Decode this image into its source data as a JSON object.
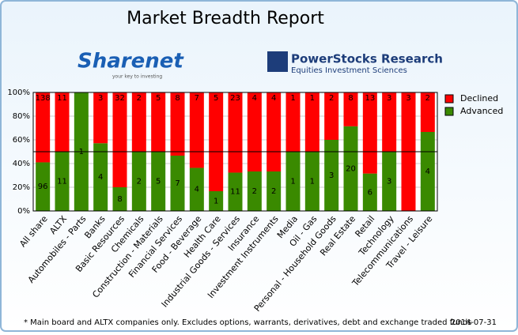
{
  "chart_data": {
    "type": "bar",
    "stack": "percent",
    "title": "Market Breadth Report",
    "categories": [
      "All share",
      "ALTX",
      "Automobiles - Parts",
      "Banks",
      "Basic Resources",
      "Chemicals",
      "Construction - Materials",
      "Financial Services",
      "Food - Beverage",
      "Health Care",
      "Industrial Goods - Services",
      "Insurance",
      "Investment Instruments",
      "Media",
      "Oil - Gas",
      "Personal - Household Goods",
      "Real Estate",
      "Retail",
      "Technology",
      "Telecommunications",
      "Travel - Leisure"
    ],
    "series": [
      {
        "name": "Advanced",
        "color": "#3a8a00",
        "values": [
          96,
          11,
          1,
          4,
          8,
          2,
          5,
          7,
          4,
          1,
          11,
          2,
          2,
          1,
          1,
          3,
          20,
          6,
          3,
          0,
          4
        ]
      },
      {
        "name": "Declined",
        "color": "#ff0000",
        "values": [
          138,
          11,
          0,
          3,
          32,
          2,
          5,
          8,
          7,
          5,
          23,
          4,
          4,
          1,
          1,
          2,
          8,
          13,
          3,
          3,
          2
        ]
      }
    ],
    "ylim": [
      0,
      100
    ],
    "yticks": [
      {
        "value": 0,
        "label": "0%"
      },
      {
        "value": 20,
        "label": "20%"
      },
      {
        "value": 40,
        "label": "40%"
      },
      {
        "value": 60,
        "label": "60%"
      },
      {
        "value": 80,
        "label": "80%"
      },
      {
        "value": 100,
        "label": "100%"
      }
    ],
    "grid": true,
    "reference_line": 50,
    "legend": "right",
    "note": "* Main board and ALTX companies only. Excludes options, warrants, derivatives, debt and exchange traded funds",
    "date": "2014-07-31"
  },
  "logos": [
    {
      "name": "Sharenet",
      "tagline": "your key to investing"
    },
    {
      "name": "PowerStocks  Research",
      "tagline": "Equities Investment Sciences"
    }
  ]
}
